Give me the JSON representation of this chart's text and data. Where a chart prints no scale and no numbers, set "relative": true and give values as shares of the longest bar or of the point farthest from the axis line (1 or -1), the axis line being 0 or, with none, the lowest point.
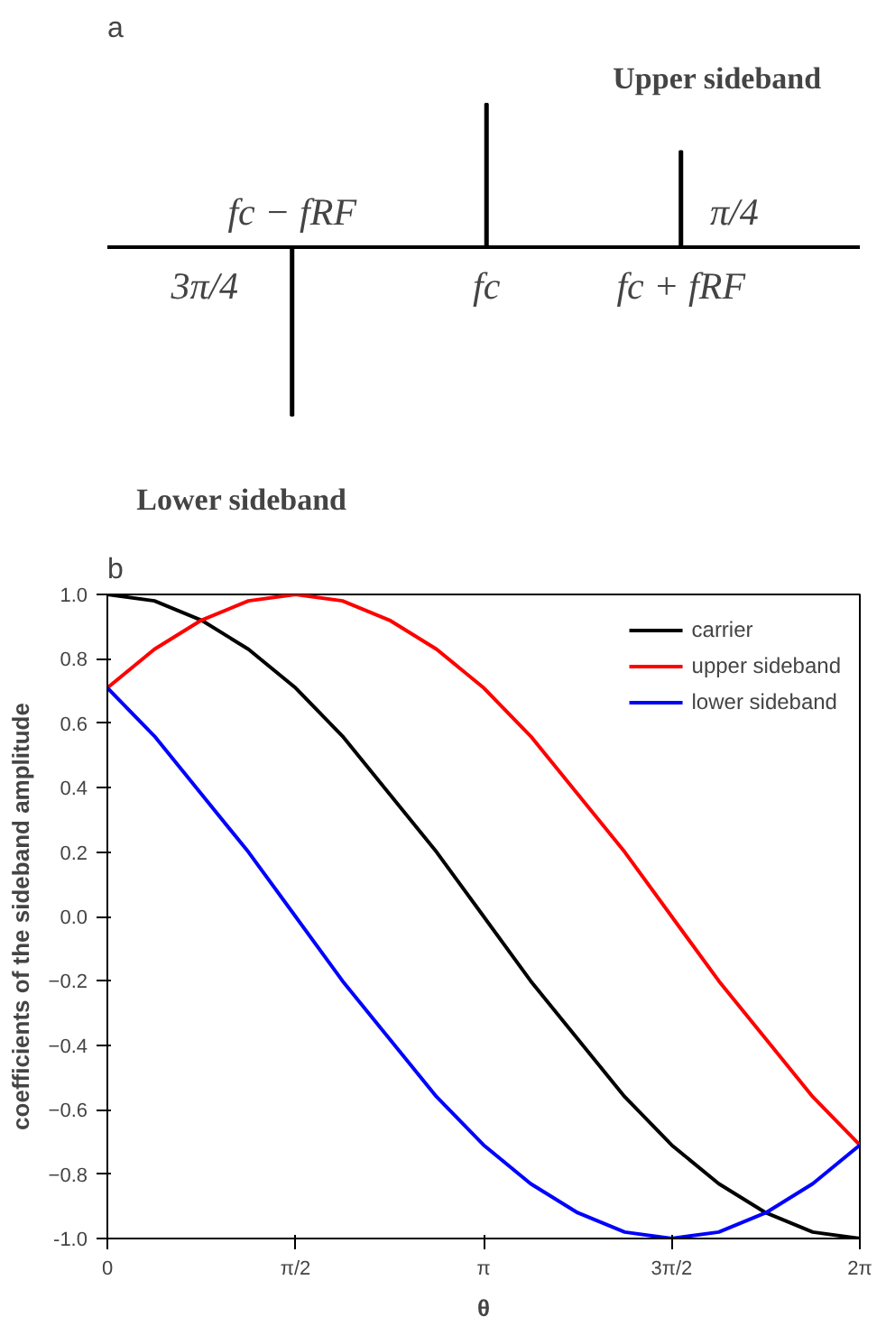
{
  "chart_data": [
    {
      "type": "bar",
      "title": "a",
      "relative": true,
      "categories": [
        "fc − fRF",
        "fc",
        "fc + fRF"
      ],
      "values": [
        -1,
        0.85,
        0.57
      ],
      "color": "#000000",
      "annotations": [
        "3π/4",
        "π/4",
        "Upper sideband",
        "Lower sideband"
      ]
    },
    {
      "type": "line",
      "title": "b",
      "xlabel": "θ",
      "ylabel": "coefficients of the sideband amplitude",
      "legend": "top right",
      "grid": false,
      "x": [
        0,
        0.393,
        0.785,
        1.178,
        1.571,
        1.963,
        2.356,
        2.749,
        3.142,
        3.534,
        3.927,
        4.32,
        4.712,
        5.105,
        5.498,
        5.89,
        6.283
      ],
      "xlim": [
        0,
        6.283
      ],
      "xticks": [
        0,
        {
          "value": 1.571,
          "label": "π/2"
        },
        {
          "value": 3.142,
          "label": "π"
        },
        {
          "value": 4.712,
          "label": "3π/2"
        },
        {
          "value": 6.283,
          "label": "2π"
        }
      ],
      "ylim": [
        -1,
        1
      ],
      "yticks": [
        {
          "value": -1,
          "label": "-1.0"
        },
        -0.8,
        -0.6,
        -0.4,
        -0.2,
        {
          "value": 0,
          "label": "0.0"
        },
        0.2,
        0.4,
        0.6,
        0.8,
        {
          "value": 1,
          "label": "1.0"
        }
      ],
      "series": [
        {
          "name": "carrier",
          "color": "#000000",
          "values": [
            1,
            0.98,
            0.92,
            0.83,
            0.71,
            0.56,
            0.38,
            0.2,
            0,
            -0.2,
            -0.38,
            -0.56,
            -0.71,
            -0.83,
            -0.92,
            -0.98,
            -1
          ]
        },
        {
          "name": "upper sideband",
          "color": "#ff0000",
          "values": [
            0.71,
            0.83,
            0.92,
            0.98,
            1,
            0.98,
            0.92,
            0.83,
            0.71,
            0.56,
            0.38,
            0.2,
            0,
            -0.2,
            -0.38,
            -0.56,
            -0.71
          ]
        },
        {
          "name": "lower sideband",
          "color": "#0000ff",
          "values": [
            0.71,
            0.56,
            0.38,
            0.2,
            0,
            -0.2,
            -0.38,
            -0.56,
            -0.71,
            -0.83,
            -0.92,
            -0.98,
            -1,
            -0.98,
            -0.92,
            -0.83,
            -0.71
          ]
        }
      ]
    }
  ]
}
